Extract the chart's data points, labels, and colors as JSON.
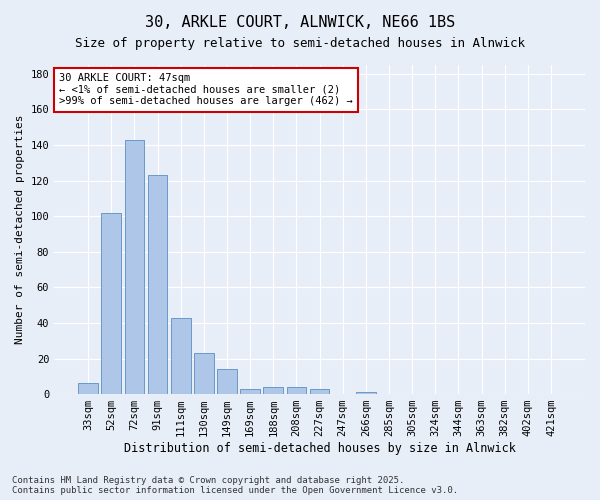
{
  "title1": "30, ARKLE COURT, ALNWICK, NE66 1BS",
  "title2": "Size of property relative to semi-detached houses in Alnwick",
  "xlabel": "Distribution of semi-detached houses by size in Alnwick",
  "ylabel": "Number of semi-detached properties",
  "categories": [
    "33sqm",
    "52sqm",
    "72sqm",
    "91sqm",
    "111sqm",
    "130sqm",
    "149sqm",
    "169sqm",
    "188sqm",
    "208sqm",
    "227sqm",
    "247sqm",
    "266sqm",
    "285sqm",
    "305sqm",
    "324sqm",
    "344sqm",
    "363sqm",
    "382sqm",
    "402sqm",
    "421sqm"
  ],
  "values": [
    6,
    102,
    143,
    123,
    43,
    23,
    14,
    3,
    4,
    4,
    3,
    0,
    1,
    0,
    0,
    0,
    0,
    0,
    0,
    0,
    0
  ],
  "bar_color": "#aec6e8",
  "bar_edge_color": "#5a8fc2",
  "annotation_text": "30 ARKLE COURT: 47sqm\n← <1% of semi-detached houses are smaller (2)\n>99% of semi-detached houses are larger (462) →",
  "annotation_box_color": "#ffffff",
  "annotation_box_edge_color": "#cc0000",
  "ylim": [
    0,
    185
  ],
  "yticks": [
    0,
    20,
    40,
    60,
    80,
    100,
    120,
    140,
    160,
    180
  ],
  "background_color": "#e8eef8",
  "plot_bg_color": "#e8eef8",
  "grid_color": "#ffffff",
  "footer_text": "Contains HM Land Registry data © Crown copyright and database right 2025.\nContains public sector information licensed under the Open Government Licence v3.0.",
  "title1_fontsize": 11,
  "title2_fontsize": 9,
  "xlabel_fontsize": 8.5,
  "ylabel_fontsize": 8,
  "tick_fontsize": 7.5,
  "footer_fontsize": 6.5,
  "annot_fontsize": 7.5
}
